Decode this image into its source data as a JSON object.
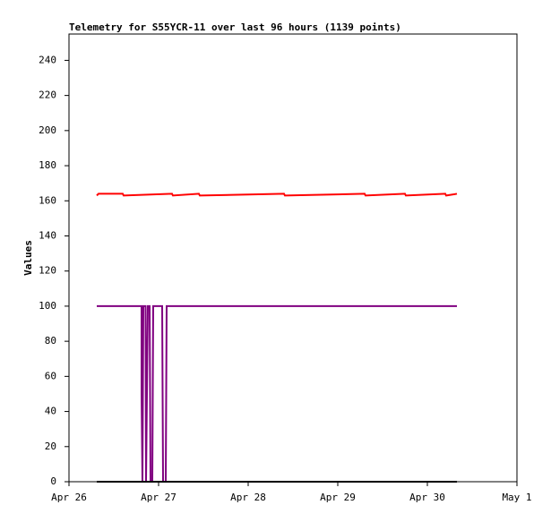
{
  "chart_data": {
    "type": "line",
    "title": "Telemetry for S55YCR-11 over last 96 hours (1139 points)",
    "y_label": "Values",
    "xlim": [
      0,
      5
    ],
    "xticks": [
      {
        "value": 0,
        "label": "Apr 26"
      },
      {
        "value": 1,
        "label": "Apr 27"
      },
      {
        "value": 2,
        "label": "Apr 28"
      },
      {
        "value": 3,
        "label": "Apr 29"
      },
      {
        "value": 4,
        "label": "Apr 30"
      },
      {
        "value": 5,
        "label": "May 1"
      }
    ],
    "ylim": [
      0,
      255
    ],
    "yticks": [
      0,
      20,
      40,
      60,
      80,
      100,
      120,
      140,
      160,
      180,
      200,
      220,
      240
    ],
    "grid": false,
    "series": [
      {
        "color": "#ff0000",
        "x": [
          0.31,
          0.33,
          0.34,
          0.6,
          0.61,
          1.15,
          1.16,
          1.45,
          1.46,
          2.4,
          2.41,
          3.3,
          3.31,
          3.75,
          3.76,
          4.2,
          4.21,
          4.33
        ],
        "values": [
          163,
          164,
          164,
          164,
          163,
          164,
          163,
          164,
          163,
          164,
          163,
          164,
          163,
          164,
          163,
          164,
          163,
          164
        ]
      },
      {
        "color": "#800080",
        "x": [
          0.31,
          0.81,
          0.81,
          0.82,
          0.83,
          0.855,
          0.86,
          0.88,
          0.9,
          0.905,
          0.91,
          0.93,
          0.935,
          0.94,
          1.04,
          1.045,
          1.05,
          1.08,
          1.085,
          1.09,
          4.33
        ],
        "values": [
          100,
          100,
          50,
          0,
          100,
          100,
          0,
          100,
          100,
          50,
          0,
          0,
          50,
          100,
          100,
          50,
          0,
          0,
          50,
          100,
          100
        ]
      },
      {
        "color": "#000000",
        "x": [
          0.31,
          4.33
        ],
        "values": [
          0,
          0
        ]
      }
    ]
  }
}
